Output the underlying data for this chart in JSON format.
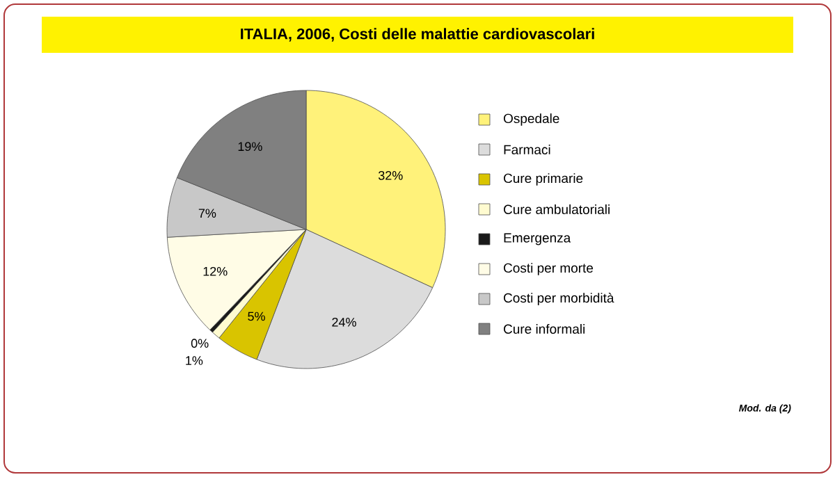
{
  "chart_data": {
    "type": "pie",
    "title": "ITALIA, 2006, Costi delle malattie cardiovascolari",
    "categories": [
      "Ospedale",
      "Farmaci",
      "Cure primarie",
      "Cure ambulatoriali",
      "Emergenza",
      "Costi per morte",
      "Costi per morbidità",
      "Cure informali"
    ],
    "values": [
      32,
      24,
      5,
      1,
      0.4,
      12,
      7,
      19
    ],
    "value_labels": [
      "32%",
      "24%",
      "5%",
      "1%",
      "0%",
      "12%",
      "7%",
      "19%"
    ],
    "colors": [
      "#fff27a",
      "#dcdcdc",
      "#d9c400",
      "#fffbd0",
      "#1a1a1a",
      "#fffce6",
      "#c8c8c8",
      "#808080"
    ],
    "legend": "right",
    "annotations": [
      "Mod. da (2)"
    ]
  }
}
